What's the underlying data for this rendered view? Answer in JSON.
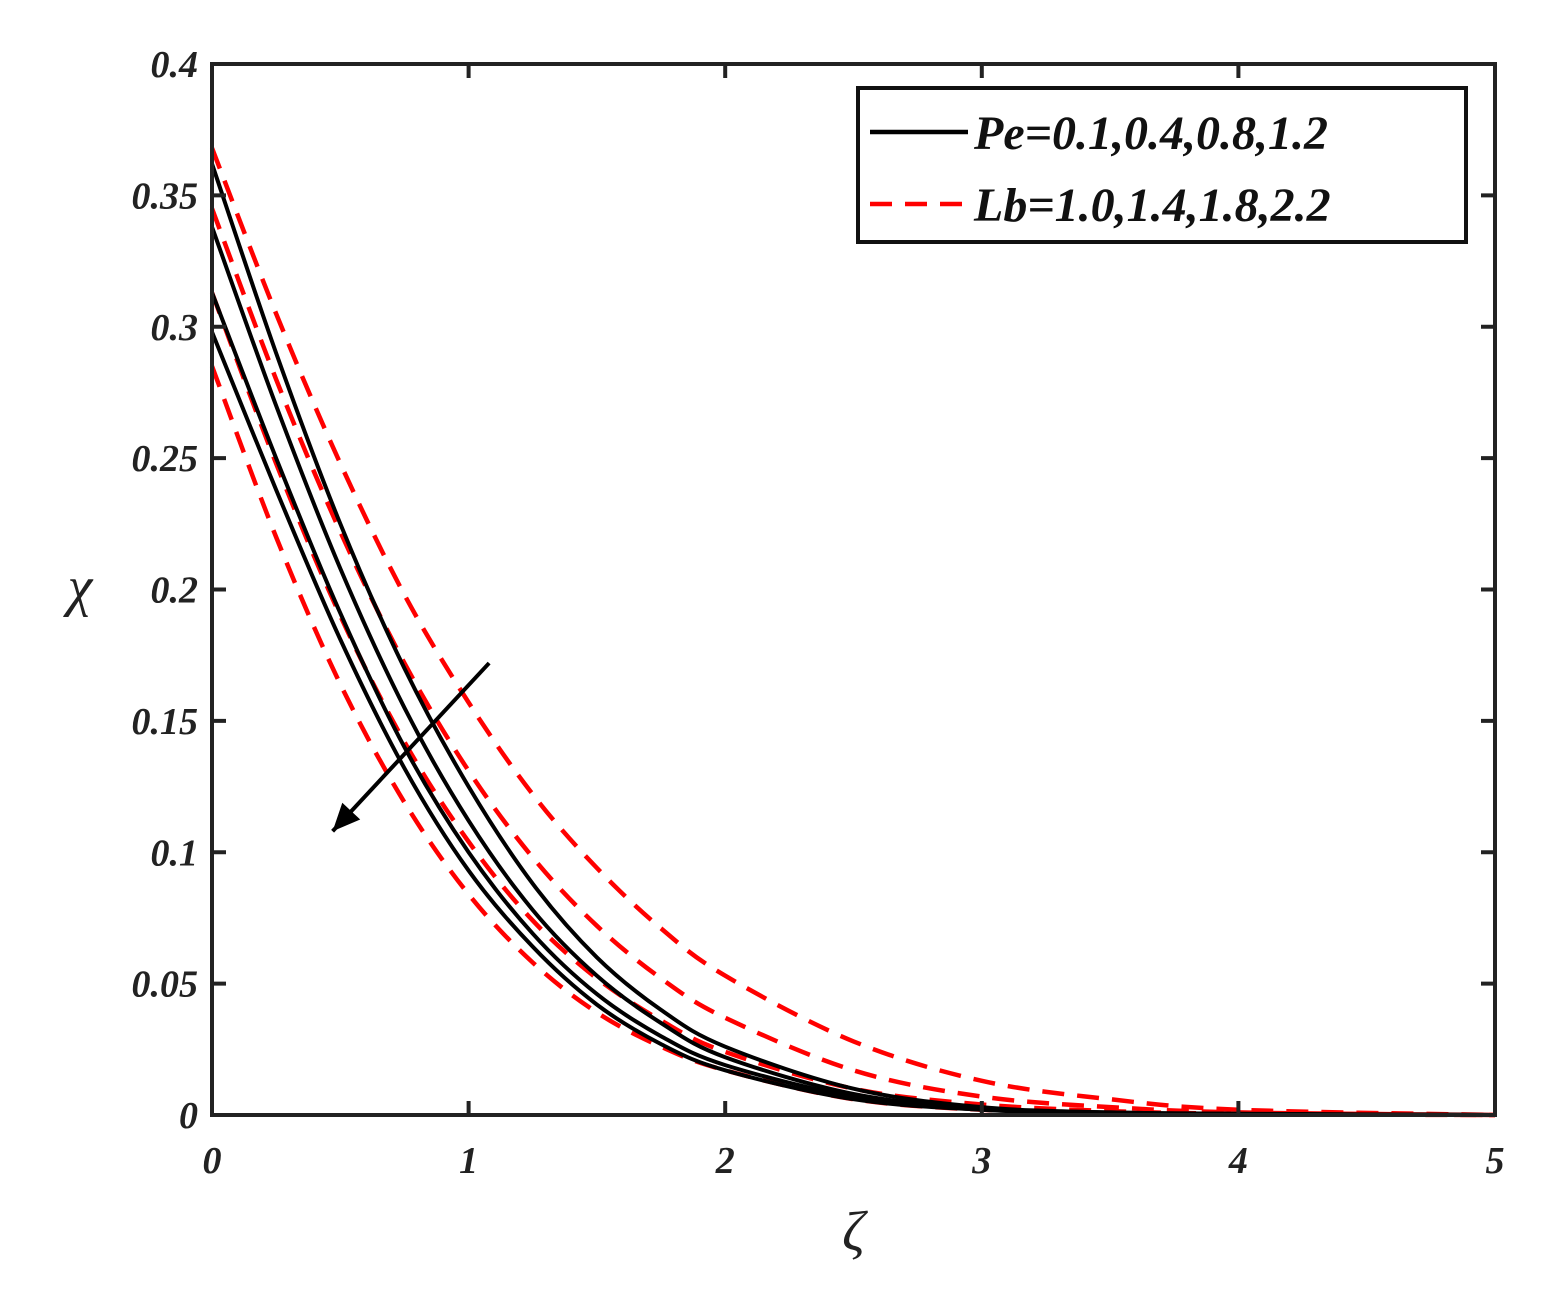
{
  "chart_data": {
    "type": "line",
    "xlabel": "ζ",
    "ylabel": "χ",
    "xlim": [
      0,
      5
    ],
    "ylim": [
      0,
      0.4
    ],
    "xticks": [
      "0",
      "1",
      "2",
      "3",
      "4",
      "5"
    ],
    "yticks": [
      "0",
      "0.05",
      "0.1",
      "0.15",
      "0.2",
      "0.25",
      "0.3",
      "0.35",
      "0.4"
    ],
    "grid": false,
    "legend_position": "top-right",
    "legend": [
      {
        "label": "Pe=0.1,0.4,0.8,1.2",
        "style": "solid",
        "color": "#000000"
      },
      {
        "label": "Lb=1.0,1.4,1.8,2.2",
        "style": "dashed",
        "color": "#ff0000"
      }
    ],
    "x": [
      0,
      0.25,
      0.5,
      0.75,
      1,
      1.25,
      1.5,
      1.75,
      2,
      2.5,
      3,
      3.5,
      4,
      5
    ],
    "series": [
      {
        "group": "Pe",
        "style": "solid",
        "color": "#000000",
        "values": [
          0.362,
          0.29,
          0.225,
          0.17,
          0.125,
          0.088,
          0.06,
          0.04,
          0.026,
          0.01,
          0.003,
          0.001,
          0.0005,
          0
        ]
      },
      {
        "group": "Pe",
        "style": "solid",
        "color": "#000000",
        "values": [
          0.338,
          0.27,
          0.208,
          0.155,
          0.112,
          0.078,
          0.053,
          0.035,
          0.022,
          0.008,
          0.0025,
          0.001,
          0.0004,
          0
        ]
      },
      {
        "group": "Pe",
        "style": "solid",
        "color": "#000000",
        "values": [
          0.313,
          0.25,
          0.191,
          0.14,
          0.1,
          0.069,
          0.046,
          0.03,
          0.019,
          0.007,
          0.002,
          0.0008,
          0.0003,
          0
        ]
      },
      {
        "group": "Pe",
        "style": "solid",
        "color": "#000000",
        "values": [
          0.298,
          0.238,
          0.181,
          0.132,
          0.093,
          0.064,
          0.042,
          0.027,
          0.017,
          0.006,
          0.002,
          0.0007,
          0.0003,
          0
        ]
      },
      {
        "group": "Lb",
        "style": "dashed",
        "color": "#ff0000",
        "values": [
          0.368,
          0.305,
          0.248,
          0.198,
          0.157,
          0.122,
          0.094,
          0.071,
          0.053,
          0.028,
          0.013,
          0.006,
          0.002,
          0
        ]
      },
      {
        "group": "Lb",
        "style": "dashed",
        "color": "#ff0000",
        "values": [
          0.345,
          0.28,
          0.222,
          0.172,
          0.131,
          0.098,
          0.072,
          0.052,
          0.037,
          0.017,
          0.007,
          0.003,
          0.001,
          0
        ]
      },
      {
        "group": "Lb",
        "style": "dashed",
        "color": "#ff0000",
        "values": [
          0.313,
          0.248,
          0.19,
          0.142,
          0.104,
          0.074,
          0.052,
          0.036,
          0.024,
          0.01,
          0.004,
          0.0015,
          0.0005,
          0
        ]
      },
      {
        "group": "Lb",
        "style": "dashed",
        "color": "#ff0000",
        "values": [
          0.285,
          0.22,
          0.164,
          0.119,
          0.084,
          0.058,
          0.039,
          0.026,
          0.017,
          0.006,
          0.002,
          0.0008,
          0.0003,
          0
        ]
      }
    ],
    "annotation": {
      "type": "arrow",
      "direction": "toward decreasing curves",
      "from": [
        1.08,
        0.172
      ],
      "to": [
        0.47,
        0.108
      ]
    }
  }
}
